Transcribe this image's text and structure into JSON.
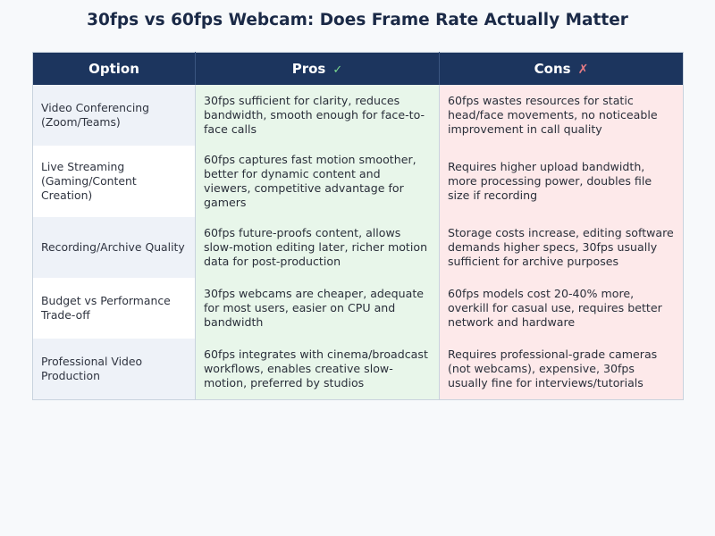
{
  "title": "30fps vs 60fps Webcam: Does Frame Rate Actually Matter",
  "headers": {
    "option": "Option",
    "pros": "Pros",
    "pros_icon": "✓",
    "cons": "Cons",
    "cons_icon": "✗"
  },
  "colors": {
    "header_bg": "#1c355e",
    "pros_bg": "#e8f6ea",
    "cons_bg": "#fde9ea",
    "check": "#7bd88f",
    "cross": "#e77c85"
  },
  "rows": [
    {
      "option": "Video Conferencing (Zoom/Teams)",
      "pros": "30fps sufficient for clarity, reduces bandwidth, smooth enough for face-to-face calls",
      "cons": "60fps wastes resources for static head/face movements, no noticeable improvement in call quality"
    },
    {
      "option": "Live Streaming (Gaming/Content Creation)",
      "pros": "60fps captures fast motion smoother, better for dynamic content and viewers, competitive advantage for gamers",
      "cons": "Requires higher upload bandwidth, more processing power, doubles file size if recording"
    },
    {
      "option": "Recording/Archive Quality",
      "pros": "60fps future-proofs content, allows slow-motion editing later, richer motion data for post-production",
      "cons": "Storage costs increase, editing software demands higher specs, 30fps usually sufficient for archive purposes"
    },
    {
      "option": "Budget vs Performance Trade-off",
      "pros": "30fps webcams are cheaper, adequate for most users, easier on CPU and bandwidth",
      "cons": "60fps models cost 20-40% more, overkill for casual use, requires better network and hardware"
    },
    {
      "option": "Professional Video Production",
      "pros": "60fps integrates with cinema/broadcast workflows, enables creative slow-motion, preferred by studios",
      "cons": "Requires professional-grade cameras (not webcams), expensive, 30fps usually fine for interviews/tutorials"
    }
  ]
}
